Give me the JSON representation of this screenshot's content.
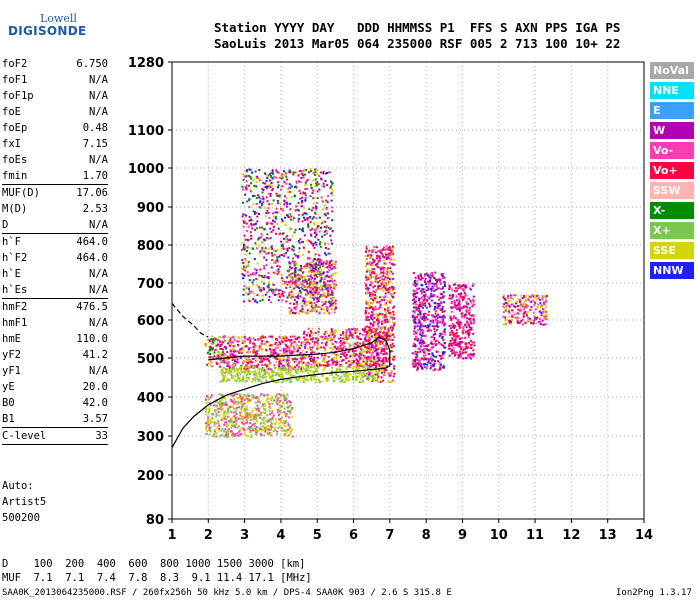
{
  "logo": {
    "line1": "Lowell",
    "line2": "DIGISONDE"
  },
  "header": {
    "row1": "Station YYYY DAY   DDD HHMMSS P1  FFS S AXN PPS IGA PS",
    "row2": "SaoLuis 2013 Mar05 064 235000 RSF 005 2 713 100 10+ 22"
  },
  "params": [
    {
      "k": "foF2",
      "v": "6.750"
    },
    {
      "k": "foF1",
      "v": "N/A"
    },
    {
      "k": "foF1p",
      "v": "N/A"
    },
    {
      "k": "foE",
      "v": "N/A"
    },
    {
      "k": "foEp",
      "v": "0.48"
    },
    {
      "k": "fxI",
      "v": "7.15"
    },
    {
      "k": "foEs",
      "v": "N/A"
    },
    {
      "k": "fmin",
      "v": "1.70"
    },
    {
      "sep": true
    },
    {
      "k": "MUF(D)",
      "v": "17.06"
    },
    {
      "k": "M(D)",
      "v": "2.53"
    },
    {
      "k": "D",
      "v": "N/A"
    },
    {
      "sep": true
    },
    {
      "k": "h`F",
      "v": "464.0"
    },
    {
      "k": "h`F2",
      "v": "464.0"
    },
    {
      "k": "h`E",
      "v": "N/A"
    },
    {
      "k": "h`Es",
      "v": "N/A"
    },
    {
      "sep": true
    },
    {
      "k": "hmF2",
      "v": "476.5"
    },
    {
      "k": "hmF1",
      "v": "N/A"
    },
    {
      "k": "hmE",
      "v": "110.0"
    },
    {
      "k": "yF2",
      "v": "41.2"
    },
    {
      "k": "yF1",
      "v": "N/A"
    },
    {
      "k": "yE",
      "v": "20.0"
    },
    {
      "k": "B0",
      "v": "42.0"
    },
    {
      "k": "B1",
      "v": "3.57"
    },
    {
      "sep": true
    },
    {
      "k": "C-level",
      "v": "33"
    },
    {
      "sep": true
    }
  ],
  "auto": {
    "line1": "Auto:",
    "line2": "Artist5",
    "line3": "500200"
  },
  "legend": [
    {
      "label": "NoVal",
      "color": "#a8a8a8"
    },
    {
      "label": "NNE",
      "color": "#00e0ff"
    },
    {
      "label": "E",
      "color": "#3aa0ff"
    },
    {
      "label": "W",
      "color": "#b400b4"
    },
    {
      "label": "Vo-",
      "color": "#ff3cb4"
    },
    {
      "label": "Vo+",
      "color": "#ff0040"
    },
    {
      "label": "SSW",
      "color": "#ffb4b4"
    },
    {
      "label": "X-",
      "color": "#008c00"
    },
    {
      "label": "X+",
      "color": "#78c850"
    },
    {
      "label": "SSE",
      "color": "#d4d400"
    },
    {
      "label": "NNW",
      "color": "#2020ff"
    }
  ],
  "dmuf": {
    "row1": "D    100  200  400  600  800 1000 1500 3000 [km]",
    "row2": "MUF  7.1  7.1  7.4  7.8  8.3  9.1 11.4 17.1 [MHz]"
  },
  "footer": "SAA0K_2013064235000.RSF / 260fx256h 50 kHz 5.0 km / DPS-4 SAA0K 903 / 2.6 S 315.8 E",
  "version": "Ion2Png 1.3.17",
  "chart_data": {
    "type": "scatter",
    "x_ticks": [
      1,
      2,
      3,
      4,
      5,
      6,
      7,
      8,
      9,
      10,
      11,
      12,
      13,
      14
    ],
    "y_ticks": [
      80,
      200,
      300,
      400,
      500,
      600,
      700,
      800,
      900,
      1000,
      1100,
      1280
    ],
    "xlim": [
      1,
      14
    ],
    "ylim": [
      80,
      1280
    ],
    "clusters": [
      {
        "x": [
          1.9,
          2.4
        ],
        "y": [
          480,
          560
        ],
        "colors": [
          "#b400b4",
          "#ff3cb4",
          "#ff0040",
          "#d4d400",
          "#008c00"
        ]
      },
      {
        "x": [
          2.4,
          4.6
        ],
        "y": [
          470,
          560
        ],
        "colors": [
          "#ff3cb4",
          "#b400b4",
          "#ff0040",
          "#d4d400"
        ]
      },
      {
        "x": [
          4.6,
          6.9
        ],
        "y": [
          480,
          580
        ],
        "colors": [
          "#ff3cb4",
          "#b400b4",
          "#ff0040",
          "#d4d400"
        ]
      },
      {
        "x": [
          6.3,
          7.1
        ],
        "y": [
          440,
          800
        ],
        "colors": [
          "#d4d400",
          "#ff3cb4",
          "#b400b4",
          "#ff0040"
        ]
      },
      {
        "x": [
          7.6,
          8.5
        ],
        "y": [
          470,
          730
        ],
        "colors": [
          "#ff3cb4",
          "#b400b4",
          "#ff0040",
          "#2020ff"
        ]
      },
      {
        "x": [
          8.6,
          9.3
        ],
        "y": [
          500,
          700
        ],
        "colors": [
          "#ff3cb4",
          "#b400b4",
          "#ff0040"
        ]
      },
      {
        "x": [
          10.1,
          11.3
        ],
        "y": [
          590,
          670
        ],
        "colors": [
          "#d4d400",
          "#ff3cb4",
          "#b400b4"
        ]
      },
      {
        "x": [
          2.3,
          6.6
        ],
        "y": [
          440,
          480
        ],
        "colors": [
          "#d4d400",
          "#78c850"
        ]
      },
      {
        "x": [
          1.9,
          4.3
        ],
        "y": [
          300,
          410
        ],
        "colors": [
          "#d4d400",
          "#78c850",
          "#ff3cb4"
        ]
      },
      {
        "x": [
          4.2,
          5.5
        ],
        "y": [
          620,
          760
        ],
        "colors": [
          "#d4d400",
          "#ff3cb4",
          "#b400b4"
        ]
      },
      {
        "x": [
          2.9,
          5.4
        ],
        "y": [
          650,
          1000
        ],
        "colors": [
          "#ff3cb4",
          "#b400b4",
          "#ff0040",
          "#2020ff",
          "#d4d400",
          "#008c00"
        ]
      }
    ],
    "trace_solid": [
      [
        1.0,
        270
      ],
      [
        1.3,
        320
      ],
      [
        1.6,
        350
      ],
      [
        2.0,
        380
      ],
      [
        2.5,
        405
      ],
      [
        3.0,
        420
      ],
      [
        3.5,
        435
      ],
      [
        4.0,
        445
      ],
      [
        4.5,
        452
      ],
      [
        5.0,
        458
      ],
      [
        5.5,
        463
      ],
      [
        6.0,
        466
      ],
      [
        6.5,
        470
      ],
      [
        6.9,
        475
      ],
      [
        7.0,
        480
      ],
      [
        7.0,
        520
      ],
      [
        6.9,
        545
      ],
      [
        6.7,
        555
      ],
      [
        6.5,
        540
      ],
      [
        6.0,
        525
      ],
      [
        5.5,
        515
      ],
      [
        5.0,
        510
      ],
      [
        4.5,
        508
      ],
      [
        4.0,
        505
      ],
      [
        3.5,
        505
      ],
      [
        3.0,
        505
      ],
      [
        2.5,
        500
      ],
      [
        2.0,
        495
      ]
    ],
    "trace_dashed": [
      [
        1.0,
        645
      ],
      [
        1.3,
        610
      ],
      [
        1.6,
        585
      ],
      [
        1.8,
        565
      ],
      [
        2.0,
        555
      ]
    ]
  }
}
